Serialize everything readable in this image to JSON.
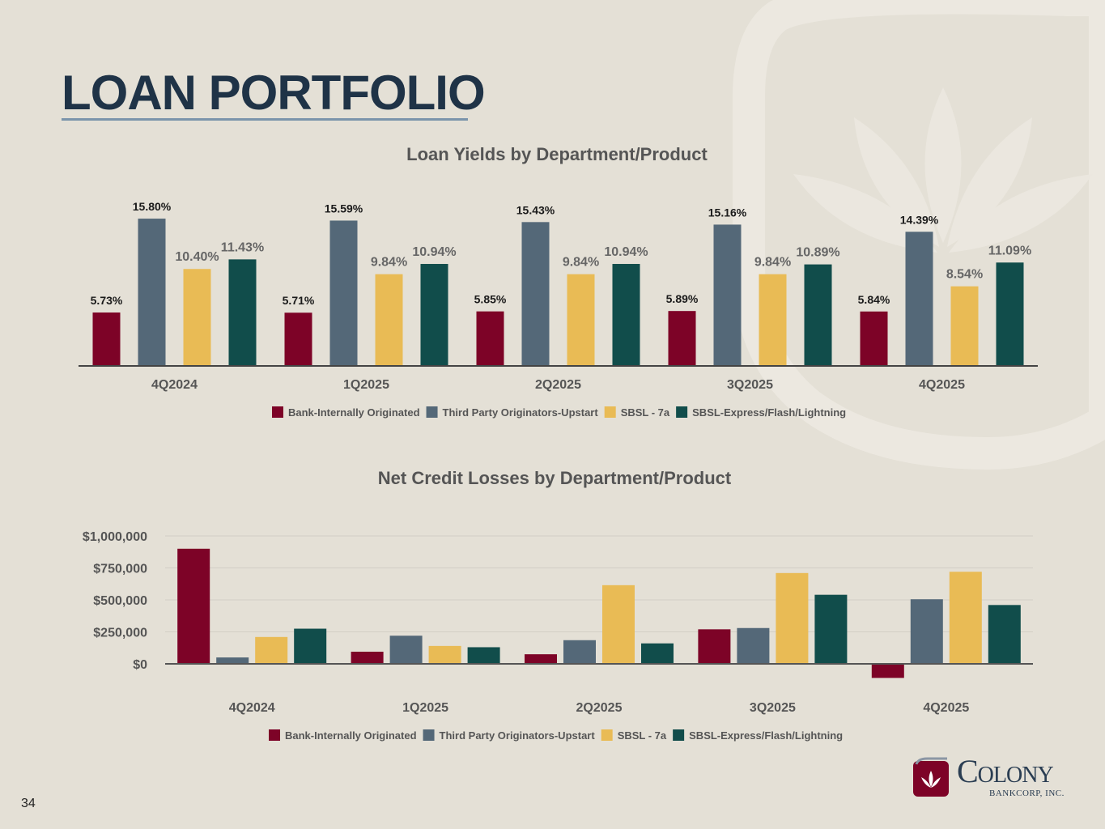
{
  "page": {
    "title": "LOAN PORTFOLIO",
    "page_number": "34",
    "logo": {
      "name": "Colony",
      "subtitle": "BANKCORP, INC."
    }
  },
  "colors": {
    "background": "#e4e0d6",
    "title": "#1f3347",
    "series": [
      "#7d0327",
      "#546878",
      "#e9bb55",
      "#114d4b"
    ]
  },
  "chart_data": [
    {
      "type": "bar",
      "title": "Loan Yields by Department/Product",
      "categories": [
        "4Q2024",
        "1Q2025",
        "2Q2025",
        "3Q2025",
        "4Q2025"
      ],
      "series": [
        {
          "name": "Bank-Internally Originated",
          "values": [
            5.73,
            5.71,
            5.85,
            5.89,
            5.84
          ],
          "labels": [
            "5.73%",
            "5.71%",
            "5.85%",
            "5.89%",
            "5.84%"
          ]
        },
        {
          "name": "Third Party Originators-Upstart",
          "values": [
            15.8,
            15.59,
            15.43,
            15.16,
            14.39
          ],
          "labels": [
            "15.80%",
            "15.59%",
            "15.43%",
            "15.16%",
            "14.39%"
          ]
        },
        {
          "name": "SBSL - 7a",
          "values": [
            10.4,
            9.84,
            9.84,
            9.84,
            8.54
          ],
          "labels": [
            "10.40%",
            "9.84%",
            "9.84%",
            "9.84%",
            "8.54%"
          ]
        },
        {
          "name": "SBSL-Express/Flash/Lightning",
          "values": [
            11.43,
            10.94,
            10.94,
            10.89,
            11.09
          ],
          "labels": [
            "11.43%",
            "10.94%",
            "10.94%",
            "10.89%",
            "11.09%"
          ]
        }
      ],
      "ylim": [
        0,
        16.5
      ],
      "legend": "bottom",
      "grid": false
    },
    {
      "type": "bar",
      "title": "Net Credit Losses by Department/Product",
      "categories": [
        "4Q2024",
        "1Q2025",
        "2Q2025",
        "3Q2025",
        "4Q2025"
      ],
      "series": [
        {
          "name": "Bank-Internally Originated",
          "values": [
            900000,
            95000,
            75000,
            270000,
            -110000
          ]
        },
        {
          "name": "Third Party Originators-Upstart",
          "values": [
            50000,
            220000,
            185000,
            280000,
            505000
          ]
        },
        {
          "name": "SBSL - 7a",
          "values": [
            210000,
            140000,
            615000,
            710000,
            720000
          ]
        },
        {
          "name": "SBSL-Express/Flash/Lightning",
          "values": [
            275000,
            130000,
            160000,
            540000,
            460000
          ]
        }
      ],
      "yticks": [
        "$0",
        "$250,000",
        "$500,000",
        "$750,000",
        "$1,000,000"
      ],
      "ytick_values": [
        0,
        250000,
        500000,
        750000,
        1000000
      ],
      "ylim": [
        -120000,
        1000000
      ],
      "legend": "bottom",
      "grid": true
    }
  ]
}
